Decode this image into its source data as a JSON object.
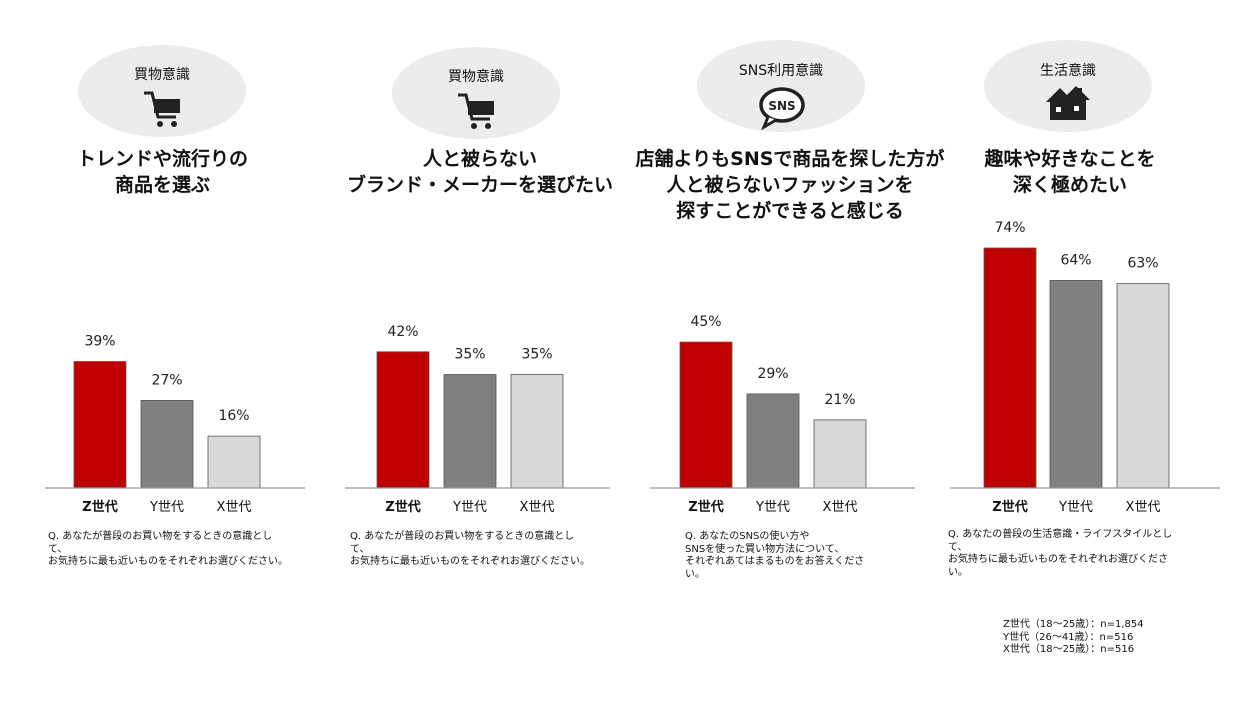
{
  "legend_series": [
    "Z世代",
    "Y世代",
    "X世代"
  ],
  "colors": {
    "z": "#c00000",
    "y": "#808080",
    "x": "#d9d9d9",
    "oval": "#ececec"
  },
  "panels": [
    {
      "category": "買物意識",
      "icon": "shopping-cart-icon",
      "headline": [
        "トレンドや流行りの",
        "商品を選ぶ"
      ],
      "question": [
        "Q. あなたが普段のお買い物をするときの意識とし",
        "て、",
        "お気持ちに最も近いものをそれぞれお選びください。"
      ]
    },
    {
      "category": "買物意識",
      "icon": "shopping-cart-icon",
      "headline": [
        "人と被らない",
        "ブランド・メーカーを選びたい"
      ],
      "question": [
        "Q. あなたが普段のお買い物をするときの意識とし",
        "て、",
        "お気持ちに最も近いものをそれぞれお選びください。"
      ]
    },
    {
      "category": "SNS利用意識",
      "icon": "sns-bubble-icon",
      "headline": [
        "店舗よりもSNSで商品を探した方が",
        "人と被らないファッションを",
        "探すことができると感じる"
      ],
      "question": [
        "Q. あなたのSNSの使い方や",
        "SNSを使った買い物方法について、",
        "それぞれあてはまるものをお答えくださ",
        "い。"
      ]
    },
    {
      "category": "生活意識",
      "icon": "house-icon",
      "headline": [
        "趣味や好きなことを",
        "深く極めたい"
      ],
      "question": [
        "Q. あなたの普段の生活意識・ライフスタイルとし",
        "て、",
        "お気持ちに最も近いものをそれぞれお選びくださ",
        "い。"
      ]
    }
  ],
  "chart_data": [
    {
      "type": "bar",
      "categories": [
        "Z世代",
        "Y世代",
        "X世代"
      ],
      "values": [
        39,
        27,
        16
      ],
      "value_labels": [
        "39%",
        "27%",
        "16%"
      ],
      "ylim": [
        0,
        80
      ]
    },
    {
      "type": "bar",
      "categories": [
        "Z世代",
        "Y世代",
        "X世代"
      ],
      "values": [
        42,
        35,
        35
      ],
      "value_labels": [
        "42%",
        "35%",
        "35%"
      ],
      "ylim": [
        0,
        80
      ]
    },
    {
      "type": "bar",
      "categories": [
        "Z世代",
        "Y世代",
        "X世代"
      ],
      "values": [
        45,
        29,
        21
      ],
      "value_labels": [
        "45%",
        "29%",
        "21%"
      ],
      "ylim": [
        0,
        80
      ]
    },
    {
      "type": "bar",
      "categories": [
        "Z世代",
        "Y世代",
        "X世代"
      ],
      "values": [
        74,
        64,
        63
      ],
      "value_labels": [
        "74%",
        "64%",
        "63%"
      ],
      "ylim": [
        0,
        80
      ]
    }
  ],
  "sample_sizes": [
    "Z世代（18～25歳）：n=1,854",
    "Y世代（26～41歳）：n=516",
    "X世代（18～25歳）：n=516"
  ]
}
